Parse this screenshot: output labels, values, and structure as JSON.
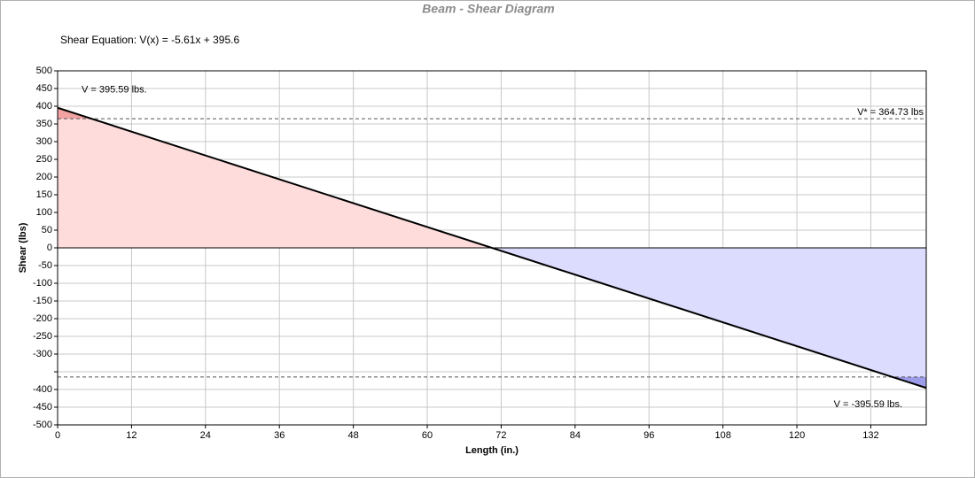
{
  "chart_data": {
    "type": "line",
    "title": "Beam - Shear Diagram",
    "subtitle": "Shear Equation:  V(x) = -5.61x + 395.6",
    "x_label": "Length (in.)",
    "y_label": "Shear (lbs)",
    "x": [
      0,
      141
    ],
    "series": [
      {
        "color": "#000000",
        "values": [
          395.59,
          -395.59
        ],
        "value_labels": [
          "V = 395.59 lbs.",
          "V = -395.59 lbs."
        ]
      }
    ],
    "limits": [
      {
        "value": 364.73,
        "label": "V* = 364.73 lbs"
      },
      -364.73
    ],
    "positive_color": "#ffdcdc",
    "positive_over_color": "#f2a2a2",
    "negative_color": "#dcdcff",
    "negative_over_color": "#9c9ce8",
    "xlim": [
      0,
      141
    ],
    "xticks": [
      0,
      12,
      24,
      36,
      48,
      60,
      72,
      84,
      96,
      108,
      120,
      132
    ],
    "ylim": [
      -500,
      500
    ],
    "yticks": [
      -500,
      -450,
      -400,
      {
        "value": -350,
        "label": null
      },
      -300,
      -250,
      -200,
      -150,
      -100,
      -50,
      0,
      50,
      100,
      150,
      200,
      250,
      300,
      350,
      400,
      450,
      500
    ],
    "grid": true
  }
}
